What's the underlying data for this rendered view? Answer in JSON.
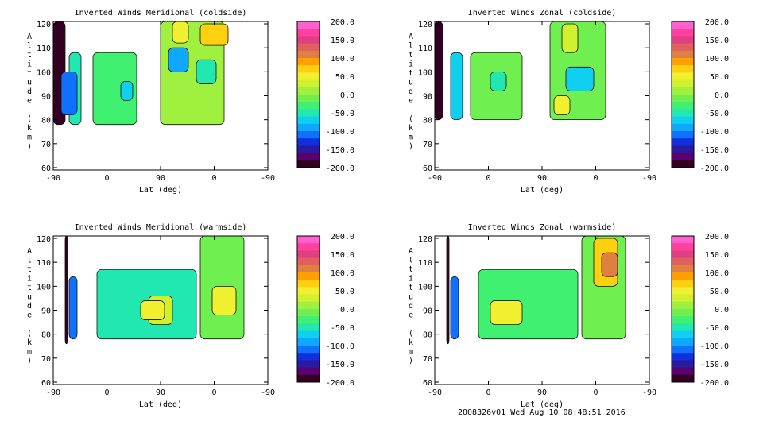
{
  "footer_text": "2008326v01 Wed Aug 10 08:48:51 2016",
  "chart_data": [
    {
      "type": "heatmap",
      "title": "Inverted Winds Meridional (coldside)",
      "xlabel": "Lat (deg)",
      "ylabel": "Altitude (km)",
      "x_tick_labels": [
        "-90",
        "0",
        "90",
        "0",
        "-90"
      ],
      "yticks": [
        60,
        70,
        80,
        90,
        100,
        110,
        120
      ],
      "ylim": [
        59,
        121
      ],
      "colorbar_ticks": [
        "200.0",
        "150.0",
        "100.0",
        "50.0",
        "0.0",
        "-50.0",
        "-100.0",
        "-150.0",
        "-200.0"
      ],
      "clim": [
        -200,
        200
      ],
      "regions": [
        {
          "x": [
            -90,
            -75
          ],
          "y": [
            78,
            121
          ],
          "value": -190
        },
        {
          "x": [
            -70,
            -55
          ],
          "y": [
            78,
            108
          ],
          "value": -60
        },
        {
          "x": [
            -40,
            15
          ],
          "y": [
            78,
            108
          ],
          "value": -25
        },
        {
          "x": [
            -5,
            10
          ],
          "y": [
            88,
            96
          ],
          "value": -70
        },
        {
          "x": [
            -80,
            -60
          ],
          "y": [
            82,
            100
          ],
          "value": -120
        },
        {
          "x": [
            45,
            125
          ],
          "y": [
            78,
            121
          ],
          "value": 10
        },
        {
          "x": [
            55,
            80
          ],
          "y": [
            100,
            110
          ],
          "value": -85
        },
        {
          "x": [
            90,
            115
          ],
          "y": [
            95,
            105
          ],
          "value": -55
        },
        {
          "x": [
            95,
            130
          ],
          "y": [
            111,
            120
          ],
          "value": 75
        },
        {
          "x": [
            60,
            80
          ],
          "y": [
            112,
            121
          ],
          "value": 50
        }
      ]
    },
    {
      "type": "heatmap",
      "title": "Inverted Winds Zonal (coldside)",
      "xlabel": "Lat (deg)",
      "ylabel": "Altitude (km)",
      "x_tick_labels": [
        "-90",
        "0",
        "90",
        "0",
        "-90"
      ],
      "yticks": [
        60,
        70,
        80,
        90,
        100,
        110,
        120
      ],
      "ylim": [
        59,
        121
      ],
      "colorbar_ticks": [
        "200.0",
        "150.0",
        "100.0",
        "50.0",
        "0.0",
        "-50.0",
        "-100.0",
        "-150.0",
        "-200.0"
      ],
      "clim": [
        -200,
        200
      ],
      "regions": [
        {
          "x": [
            -90,
            -80
          ],
          "y": [
            80,
            121
          ],
          "value": -190
        },
        {
          "x": [
            -70,
            -55
          ],
          "y": [
            80,
            108
          ],
          "value": -70
        },
        {
          "x": [
            -45,
            20
          ],
          "y": [
            80,
            108
          ],
          "value": -20
        },
        {
          "x": [
            -20,
            0
          ],
          "y": [
            92,
            100
          ],
          "value": -60
        },
        {
          "x": [
            55,
            125
          ],
          "y": [
            80,
            121
          ],
          "value": -15
        },
        {
          "x": [
            75,
            110
          ],
          "y": [
            92,
            102
          ],
          "value": -80
        },
        {
          "x": [
            70,
            90
          ],
          "y": [
            108,
            120
          ],
          "value": 35
        },
        {
          "x": [
            60,
            80
          ],
          "y": [
            82,
            90
          ],
          "value": 40
        }
      ]
    },
    {
      "type": "heatmap",
      "title": "Inverted Winds Meridional (warmside)",
      "xlabel": "Lat (deg)",
      "ylabel": "Altitude (km)",
      "x_tick_labels": [
        "-90",
        "0",
        "90",
        "0",
        "-90"
      ],
      "yticks": [
        60,
        70,
        80,
        90,
        100,
        110,
        120
      ],
      "ylim": [
        59,
        121
      ],
      "colorbar_ticks": [
        "200.0",
        "150.0",
        "100.0",
        "50.0",
        "0.0",
        "-50.0",
        "-100.0",
        "-150.0",
        "-200.0"
      ],
      "clim": [
        -200,
        200
      ],
      "regions": [
        {
          "x": [
            -75,
            -72
          ],
          "y": [
            76,
            121
          ],
          "value": -200
        },
        {
          "x": [
            -70,
            -60
          ],
          "y": [
            78,
            104
          ],
          "value": -120
        },
        {
          "x": [
            -35,
            90
          ],
          "y": [
            78,
            107
          ],
          "value": -45
        },
        {
          "x": [
            30,
            60
          ],
          "y": [
            84,
            96
          ],
          "value": 30
        },
        {
          "x": [
            20,
            50
          ],
          "y": [
            86,
            94
          ],
          "value": 55
        },
        {
          "x": [
            95,
            150
          ],
          "y": [
            78,
            121
          ],
          "value": -20
        },
        {
          "x": [
            110,
            140
          ],
          "y": [
            88,
            100
          ],
          "value": 40
        }
      ]
    },
    {
      "type": "heatmap",
      "title": "Inverted Winds Zonal (warmside)",
      "xlabel": "Lat (deg)",
      "ylabel": "Altitude (km)",
      "x_tick_labels": [
        "-90",
        "0",
        "90",
        "0",
        "-90"
      ],
      "yticks": [
        60,
        70,
        80,
        90,
        100,
        110,
        120
      ],
      "ylim": [
        59,
        121
      ],
      "colorbar_ticks": [
        "200.0",
        "150.0",
        "100.0",
        "50.0",
        "0.0",
        "-50.0",
        "-100.0",
        "-150.0",
        "-200.0"
      ],
      "clim": [
        -200,
        200
      ],
      "regions": [
        {
          "x": [
            -75,
            -72
          ],
          "y": [
            76,
            121
          ],
          "value": -200
        },
        {
          "x": [
            -70,
            -60
          ],
          "y": [
            78,
            104
          ],
          "value": -110
        },
        {
          "x": [
            -35,
            90
          ],
          "y": [
            78,
            107
          ],
          "value": -30
        },
        {
          "x": [
            -20,
            20
          ],
          "y": [
            84,
            94
          ],
          "value": 55
        },
        {
          "x": [
            95,
            150
          ],
          "y": [
            78,
            121
          ],
          "value": -5
        },
        {
          "x": [
            110,
            140
          ],
          "y": [
            100,
            120
          ],
          "value": 60
        },
        {
          "x": [
            120,
            140
          ],
          "y": [
            104,
            114
          ],
          "value": 110
        }
      ]
    }
  ]
}
